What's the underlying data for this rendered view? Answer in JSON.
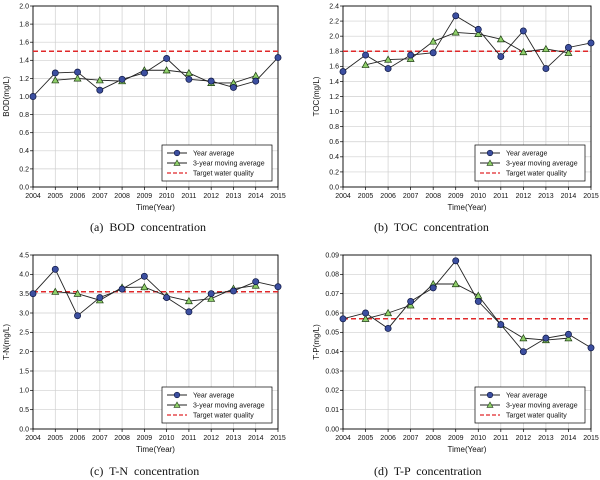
{
  "legend_labels": {
    "year_avg": "Year average",
    "moving_avg": "3-year moving average",
    "target": "Target water quality"
  },
  "colors": {
    "year_avg_fill": "#3c4fa0",
    "moving_avg_fill": "#8fcf6a",
    "line": "#222222",
    "target": "#e0282a",
    "grid": "#cfcfcf"
  },
  "chart_data": [
    {
      "id": "bod",
      "type": "line",
      "caption": "(a)  BOD  concentration",
      "xlabel": "Time(Year)",
      "ylabel": "BOD(mg/L)",
      "x": [
        2004,
        2005,
        2006,
        2007,
        2008,
        2009,
        2010,
        2011,
        2012,
        2013,
        2014,
        2015
      ],
      "xticks": [
        "2004",
        "2005",
        "2006",
        "2007",
        "2008",
        "2009",
        "2010",
        "2011",
        "2012",
        "2013",
        "2014",
        "2015"
      ],
      "ylim": [
        0.0,
        2.0
      ],
      "yticks": [
        "0.0",
        "0.2",
        "0.4",
        "0.6",
        "0.8",
        "1.0",
        "1.2",
        "1.4",
        "1.6",
        "1.8",
        "2.0"
      ],
      "grid": true,
      "legend_position": "bottom-right",
      "series": [
        {
          "name": "Year average",
          "values": [
            1.0,
            1.26,
            1.27,
            1.07,
            1.19,
            1.26,
            1.42,
            1.19,
            1.17,
            1.1,
            1.17,
            1.43
          ]
        },
        {
          "name": "3-year moving average",
          "values": [
            null,
            1.18,
            1.2,
            1.18,
            1.17,
            1.29,
            1.29,
            1.26,
            1.15,
            1.15,
            1.23,
            null
          ]
        }
      ],
      "target": 1.5
    },
    {
      "id": "toc",
      "type": "line",
      "caption": "(b)  TOC  concentration",
      "xlabel": "Time(Year)",
      "ylabel": "TOC(mg/L)",
      "x": [
        2004,
        2005,
        2006,
        2007,
        2008,
        2009,
        2010,
        2011,
        2012,
        2013,
        2014,
        2015
      ],
      "xticks": [
        "2004",
        "2005",
        "2006",
        "2007",
        "2008",
        "2009",
        "2010",
        "2011",
        "2012",
        "2013",
        "2014",
        "2015"
      ],
      "ylim": [
        0.0,
        2.4
      ],
      "yticks": [
        "0.0",
        "0.2",
        "0.4",
        "0.6",
        "0.8",
        "1.0",
        "1.2",
        "1.4",
        "1.6",
        "1.8",
        "2.0",
        "2.2",
        "2.4"
      ],
      "grid": true,
      "legend_position": "bottom-right",
      "series": [
        {
          "name": "Year average",
          "values": [
            1.53,
            1.75,
            1.57,
            1.75,
            1.78,
            2.27,
            2.09,
            1.73,
            2.07,
            1.57,
            1.85,
            1.91
          ]
        },
        {
          "name": "3-year moving average",
          "values": [
            null,
            1.62,
            1.69,
            1.7,
            1.93,
            2.05,
            2.03,
            1.96,
            1.79,
            1.83,
            1.78,
            null
          ]
        }
      ],
      "target": 1.8
    },
    {
      "id": "tn",
      "type": "line",
      "caption": "(c)  T-N  concentration",
      "xlabel": "Time(Year)",
      "ylabel": "T-N(mg/L)",
      "x": [
        2004,
        2005,
        2006,
        2007,
        2008,
        2009,
        2010,
        2011,
        2012,
        2013,
        2014,
        2015
      ],
      "xticks": [
        "2004",
        "2005",
        "2006",
        "2007",
        "2008",
        "2009",
        "2010",
        "2011",
        "2012",
        "2013",
        "2014",
        "2015"
      ],
      "ylim": [
        0.0,
        4.5
      ],
      "yticks": [
        "0.0",
        "0.5",
        "1.0",
        "1.5",
        "2.0",
        "2.5",
        "3.0",
        "3.5",
        "4.0",
        "4.5"
      ],
      "grid": true,
      "legend_position": "bottom-right",
      "series": [
        {
          "name": "Year average",
          "values": [
            3.5,
            4.13,
            2.93,
            3.4,
            3.62,
            3.95,
            3.4,
            3.03,
            3.5,
            3.57,
            3.81,
            3.68
          ]
        },
        {
          "name": "3-year moving average",
          "values": [
            null,
            3.55,
            3.5,
            3.33,
            3.66,
            3.67,
            3.44,
            3.31,
            3.37,
            3.63,
            3.71,
            null
          ]
        }
      ],
      "target": 3.55
    },
    {
      "id": "tp",
      "type": "line",
      "caption": "(d)  T-P  concentration",
      "xlabel": "Time(Year)",
      "ylabel": "T-P(mg/L)",
      "x": [
        2004,
        2005,
        2006,
        2007,
        2008,
        2009,
        2010,
        2011,
        2012,
        2013,
        2014,
        2015
      ],
      "xticks": [
        "2004",
        "2005",
        "2006",
        "2007",
        "2008",
        "2009",
        "2010",
        "2011",
        "2012",
        "2013",
        "2014",
        "2015"
      ],
      "ylim": [
        0.0,
        0.09
      ],
      "yticks": [
        "0.00",
        "0.01",
        "0.02",
        "0.03",
        "0.04",
        "0.05",
        "0.06",
        "0.07",
        "0.08",
        "0.09"
      ],
      "grid": true,
      "legend_position": "bottom-right",
      "series": [
        {
          "name": "Year average",
          "values": [
            0.057,
            0.06,
            0.052,
            0.066,
            0.073,
            0.087,
            0.066,
            0.054,
            0.04,
            0.047,
            0.049,
            0.042
          ]
        },
        {
          "name": "3-year moving average",
          "values": [
            null,
            0.057,
            0.06,
            0.064,
            0.075,
            0.075,
            0.069,
            0.054,
            0.047,
            0.046,
            0.047,
            null
          ]
        }
      ],
      "target": 0.057
    }
  ]
}
